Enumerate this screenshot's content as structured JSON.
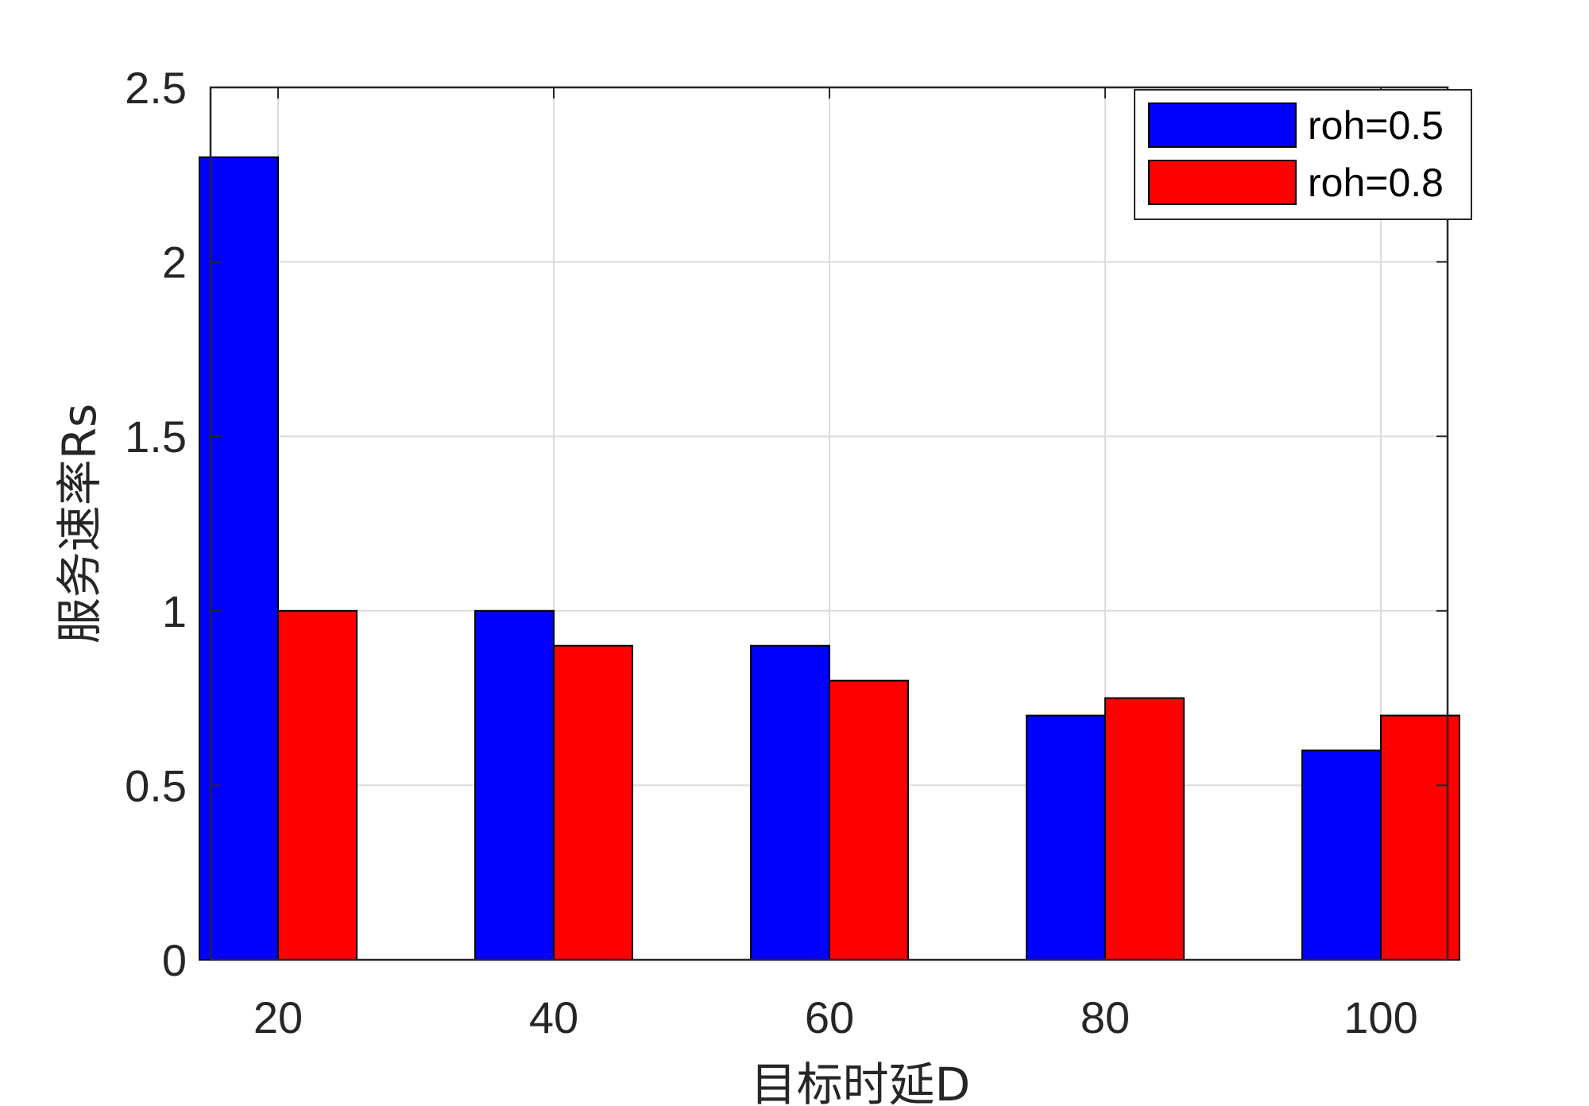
{
  "chart_data": {
    "type": "bar",
    "title": "",
    "xlabel": "目标时延D",
    "ylabel": "服务速率Rs",
    "categories": [
      "20",
      "40",
      "60",
      "80",
      "100"
    ],
    "series": [
      {
        "name": "roh=0.5",
        "color": "#0000ff",
        "values": [
          2.3,
          1.0,
          0.9,
          0.7,
          0.6
        ]
      },
      {
        "name": "roh=0.8",
        "color": "#ff0000",
        "values": [
          1.0,
          0.9,
          0.8,
          0.75,
          0.7
        ]
      }
    ],
    "ylim": [
      0,
      2.5
    ],
    "yticks": [
      "0",
      "0.5",
      "1",
      "1.5",
      "2",
      "2.5"
    ],
    "grid": true,
    "legend_position": "top-right"
  }
}
